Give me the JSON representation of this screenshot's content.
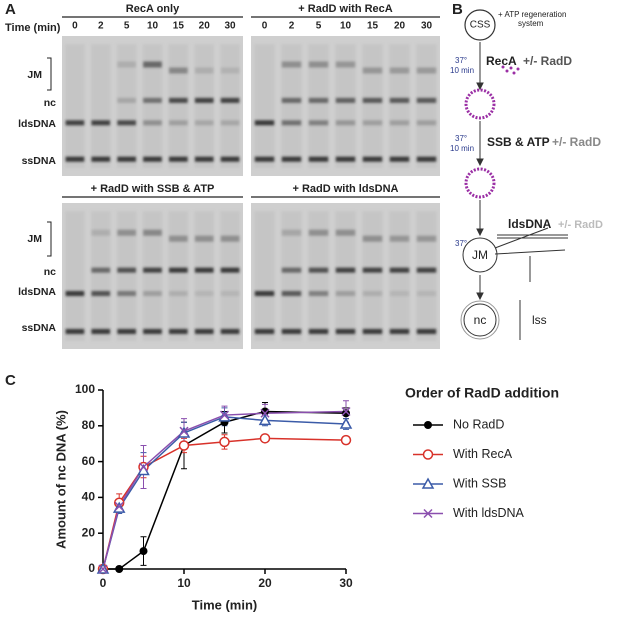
{
  "panel_labels": [
    "A",
    "B",
    "C"
  ],
  "gels": {
    "time_label": "Time (min)",
    "lanes": [
      "0",
      "2",
      "5",
      "10",
      "15",
      "20",
      "30"
    ],
    "rows": [
      "JM",
      "nc",
      "ldsDNA",
      "ssDNA"
    ],
    "titles": [
      "RecA only",
      "+ RadD with RecA",
      "+ RadD with SSB & ATP",
      "+ RadD with ldsDNA"
    ]
  },
  "diagram": {
    "css": "CSS",
    "atp": "+ ATP regeneration",
    "atp2": "system",
    "temp": "37°",
    "duration": "10 min",
    "step1": "RecA",
    "step2": "SSB & ATP",
    "step3": "ldsDNA",
    "radd": "+/- RadD",
    "jm": "JM",
    "nc": "nc",
    "lss": "lss"
  },
  "chart_data": {
    "type": "line",
    "xlabel": "Time (min)",
    "ylabel": "Amount of nc DNA (%)",
    "legend_title": "Order of RadD addition",
    "legend": "right",
    "x": [
      0,
      2,
      5,
      10,
      15,
      20,
      30
    ],
    "xlim": [
      0,
      30
    ],
    "ylim": [
      0,
      100
    ],
    "xticks": [
      0,
      10,
      20,
      30
    ],
    "yticks": [
      0,
      20,
      40,
      60,
      80,
      100
    ],
    "series": [
      {
        "name": "No RadD",
        "color": "#000000",
        "marker": "filled-circle",
        "values": [
          0,
          0,
          10,
          69,
          82,
          88,
          87
        ],
        "errors": [
          0,
          0,
          8,
          13,
          6,
          5,
          3
        ]
      },
      {
        "name": "With RecA",
        "color": "#d8322a",
        "marker": "open-circle",
        "values": [
          0,
          37,
          57,
          69,
          71,
          73,
          72
        ],
        "errors": [
          0,
          5,
          6,
          4,
          4,
          2,
          2
        ]
      },
      {
        "name": "With SSB",
        "color": "#3b5ba8",
        "marker": "open-triangle",
        "values": [
          0,
          34,
          55,
          76,
          85,
          83,
          81
        ],
        "errors": [
          0,
          3,
          10,
          6,
          5,
          3,
          3
        ]
      },
      {
        "name": "With ldsDNA",
        "color": "#8a4fae",
        "marker": "cross",
        "values": [
          0,
          35,
          57,
          77,
          86,
          87,
          88
        ],
        "errors": [
          0,
          3,
          12,
          7,
          5,
          5,
          6
        ]
      }
    ]
  }
}
